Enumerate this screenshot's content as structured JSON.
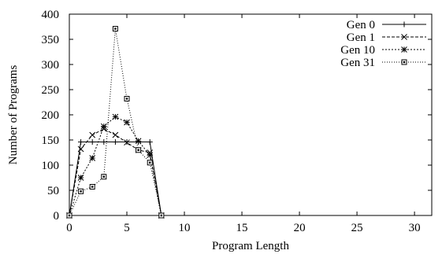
{
  "chart_data": {
    "type": "line",
    "title": "",
    "xlabel": "Program Length",
    "ylabel": "Number of Programs",
    "xlim": [
      0,
      31.5
    ],
    "ylim": [
      0,
      400
    ],
    "xticks": [
      0,
      5,
      10,
      15,
      20,
      25,
      30
    ],
    "yticks": [
      0,
      50,
      100,
      150,
      200,
      250,
      300,
      350,
      400
    ],
    "xtick_labels": [
      "0",
      "5",
      "10",
      "15",
      "20",
      "25",
      "30"
    ],
    "ytick_labels": [
      "0",
      "50",
      "100",
      "150",
      "200",
      "250",
      "300",
      "350",
      "400"
    ],
    "grid": false,
    "legend_position": "top-right",
    "series": [
      {
        "name": "Gen 0",
        "line_style": "solid",
        "marker": "plus",
        "color": "#000000",
        "x": [
          0,
          1,
          2,
          3,
          4,
          5,
          6,
          7,
          8
        ],
        "y": [
          0,
          146,
          146,
          146,
          146,
          146,
          146,
          146,
          0
        ]
      },
      {
        "name": "Gen 1",
        "line_style": "dashed",
        "marker": "cross",
        "color": "#000000",
        "x": [
          0,
          1,
          2,
          3,
          4,
          5,
          6,
          7,
          8
        ],
        "y": [
          0,
          132,
          160,
          172,
          160,
          145,
          130,
          125,
          0
        ]
      },
      {
        "name": "Gen 10",
        "line_style": "dotted",
        "marker": "star",
        "color": "#000000",
        "x": [
          0,
          1,
          2,
          3,
          4,
          5,
          6,
          7,
          8
        ],
        "y": [
          0,
          75,
          114,
          177,
          196,
          185,
          148,
          120,
          0
        ]
      },
      {
        "name": "Gen 31",
        "line_style": "fine-dotted",
        "marker": "square",
        "color": "#000000",
        "x": [
          0,
          1,
          2,
          3,
          4,
          5,
          6,
          7,
          8
        ],
        "y": [
          0,
          48,
          57,
          77,
          371,
          232,
          130,
          105,
          0
        ]
      }
    ]
  }
}
